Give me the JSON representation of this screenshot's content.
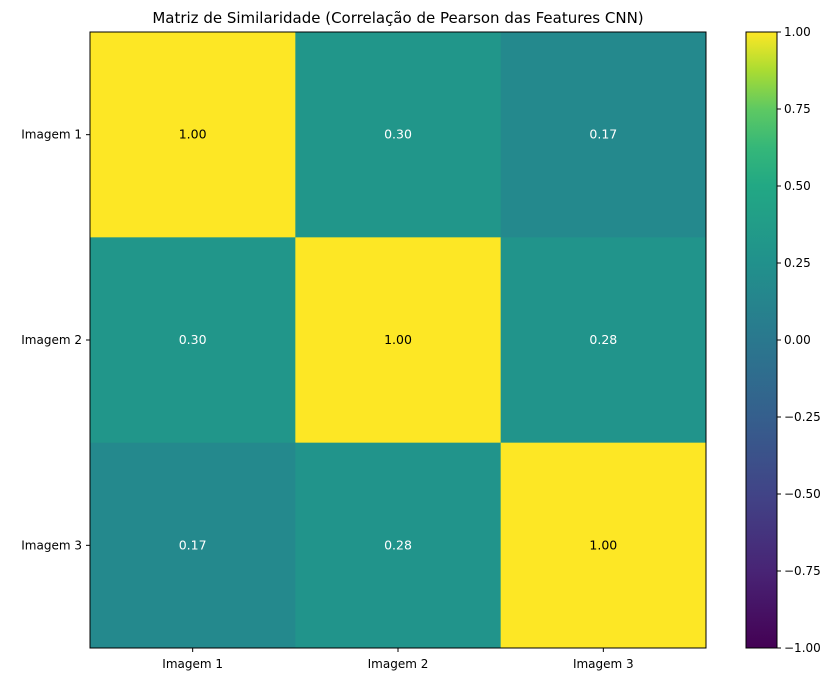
{
  "chart_data": {
    "type": "heatmap",
    "title": "Matriz de Similaridade (Correlação de Pearson das Features CNN)",
    "row_labels": [
      "Imagem 1",
      "Imagem 2",
      "Imagem 3"
    ],
    "col_labels": [
      "Imagem 1",
      "Imagem 2",
      "Imagem 3"
    ],
    "values": [
      [
        1.0,
        0.3,
        0.17
      ],
      [
        0.3,
        1.0,
        0.28
      ],
      [
        0.17,
        0.28,
        1.0
      ]
    ],
    "value_labels": [
      [
        "1.00",
        "0.30",
        "0.17"
      ],
      [
        "0.30",
        "1.00",
        "0.28"
      ],
      [
        "0.17",
        "0.28",
        "1.00"
      ]
    ],
    "colormap": "viridis",
    "vmin": -1.0,
    "vmax": 1.0,
    "colorbar_ticks": [
      1.0,
      0.75,
      0.5,
      0.25,
      0.0,
      -0.25,
      -0.5,
      -0.75,
      -1.0
    ],
    "colorbar_tick_labels": [
      "1.00",
      "0.75",
      "0.50",
      "0.25",
      "0.00",
      "−0.25",
      "−0.50",
      "−0.75",
      "−1.00"
    ],
    "colorbar_position": "right",
    "grid": false,
    "label_colors": {
      "dark": "#000000",
      "light": "#ffffff"
    }
  }
}
